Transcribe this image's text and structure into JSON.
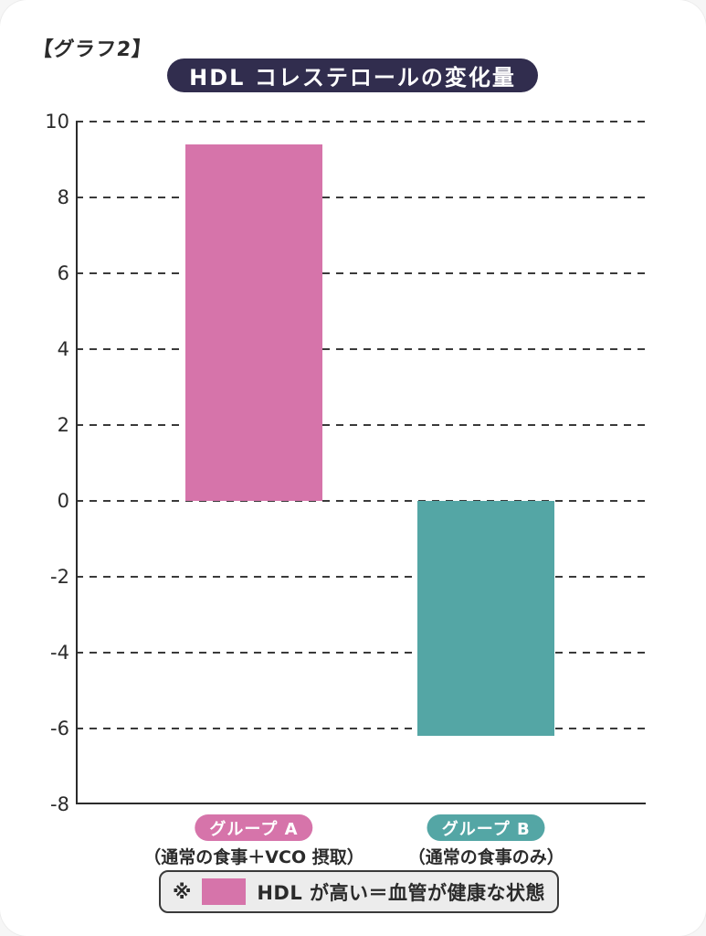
{
  "page": {
    "graph_label": "【グラフ2】"
  },
  "chart_data": {
    "type": "bar",
    "title": "HDL コレステロールの変化量",
    "categories": [
      "グループ A",
      "グループ B"
    ],
    "values": [
      9.4,
      -6.2
    ],
    "bar_colors": [
      "#d674aa",
      "#54a6a5"
    ],
    "captions": [
      "（通常の食事＋VCO 摂取）",
      "（通常の食事のみ）"
    ],
    "xlabel": "",
    "ylabel": "",
    "ylim": [
      -8,
      10
    ],
    "ytick_step": 2,
    "grid": "dashed-horizontal",
    "legend_position": "bottom"
  },
  "legend": {
    "prefix": "※",
    "swatch_color": "#d674aa",
    "text": "HDL が高い＝血管が健康な状態"
  },
  "colors": {
    "title_bg": "#312d4e",
    "axis": "#2b2b2b",
    "legend_bg": "#ececec",
    "card_bg": "#ffffff"
  }
}
